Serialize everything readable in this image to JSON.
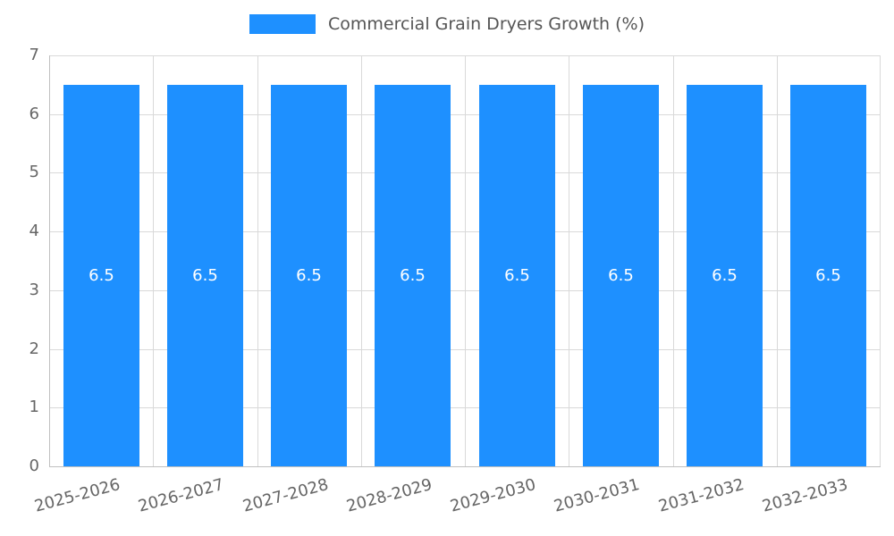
{
  "chart_data": {
    "type": "bar",
    "title": "Commercial Grain Dryers Growth (%)",
    "categories": [
      "2025-2026",
      "2026-2027",
      "2027-2028",
      "2028-2029",
      "2029-2030",
      "2030-2031",
      "2031-2032",
      "2032-2033"
    ],
    "values": [
      6.5,
      6.5,
      6.5,
      6.5,
      6.5,
      6.5,
      6.5,
      6.5
    ],
    "value_labels": [
      "6.5",
      "6.5",
      "6.5",
      "6.5",
      "6.5",
      "6.5",
      "6.5",
      "6.5"
    ],
    "xlabel": "",
    "ylabel": "",
    "ylim": [
      0,
      7
    ],
    "y_ticks": [
      0,
      1,
      2,
      3,
      4,
      5,
      6,
      7
    ],
    "grid": true,
    "legend_position": "top",
    "colors": {
      "bar": "#1E90FF",
      "grid": "#D9D9D9",
      "axis_line": "#C0C0C0",
      "axis_text": "#666666",
      "title_text": "#555555",
      "value_label": "#FFFFFF",
      "background": "#FFFFFF"
    }
  }
}
